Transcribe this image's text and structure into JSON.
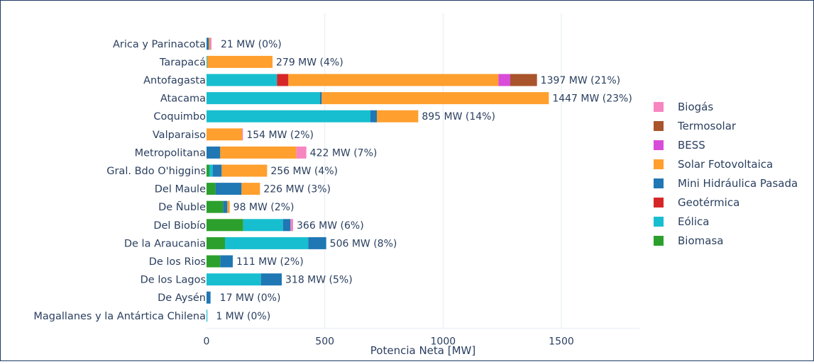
{
  "chart_data": {
    "type": "bar",
    "orientation": "horizontal",
    "stacked": true,
    "xlabel": "Potencia Neta [MW]",
    "ylabel": "",
    "xlim": [
      0,
      1830
    ],
    "xticks": [
      0,
      500,
      1000,
      1500
    ],
    "xtick_labels": [
      "0",
      "500",
      "1000",
      "1500"
    ],
    "grid": true,
    "legend_position": "right",
    "categories": [
      "Arica y Parinacota",
      "Tarapacá",
      "Antofagasta",
      "Atacama",
      "Coquimbo",
      "Valparaiso",
      "Metropolitana",
      "Gral. Bdo O'higgins",
      "Del Maule",
      "De Ñuble",
      "Del Biobío",
      "De la Araucania",
      "De los Rios",
      "De los Lagos",
      "De Aysén",
      "Magallanes y la Antártica Chilena"
    ],
    "series": [
      {
        "name": "Biomasa",
        "color": "#2ca02c",
        "values": [
          0,
          0,
          0,
          0,
          0,
          0,
          0,
          12,
          38,
          70,
          155,
          78,
          58,
          0,
          0,
          0
        ]
      },
      {
        "name": "Eólica",
        "color": "#17becf",
        "values": [
          0,
          3,
          298,
          480,
          693,
          0,
          0,
          14,
          0,
          0,
          168,
          352,
          0,
          230,
          0,
          1
        ]
      },
      {
        "name": "Geotérmica",
        "color": "#d62728",
        "values": [
          0,
          0,
          48,
          0,
          0,
          0,
          0,
          0,
          0,
          0,
          0,
          0,
          0,
          0,
          0,
          0
        ]
      },
      {
        "name": "Mini Hidráulica Pasada",
        "color": "#1f77b4",
        "values": [
          10,
          0,
          0,
          7,
          27,
          0,
          58,
          38,
          110,
          18,
          32,
          76,
          53,
          88,
          17,
          0
        ]
      },
      {
        "name": "Solar Fotovoltaica",
        "color": "#ff9f2e",
        "values": [
          5,
          276,
          888,
          960,
          175,
          150,
          322,
          192,
          78,
          10,
          0,
          0,
          0,
          0,
          0,
          0
        ]
      },
      {
        "name": "BESS",
        "color": "#d94cd9",
        "values": [
          0,
          0,
          50,
          0,
          0,
          0,
          0,
          0,
          0,
          0,
          0,
          0,
          0,
          0,
          0,
          0
        ]
      },
      {
        "name": "Termosolar",
        "color": "#a9542a",
        "values": [
          0,
          0,
          113,
          0,
          0,
          0,
          0,
          0,
          0,
          0,
          0,
          0,
          0,
          0,
          0,
          0
        ]
      },
      {
        "name": "Biogás",
        "color": "#f785c0",
        "values": [
          6,
          0,
          0,
          0,
          0,
          4,
          42,
          0,
          0,
          0,
          11,
          0,
          0,
          0,
          0,
          0
        ]
      }
    ],
    "totals_labels": [
      "21 MW (0%)",
      "279 MW (4%)",
      "1397 MW (21%)",
      "1447 MW (23%)",
      "895 MW (14%)",
      "154 MW (2%)",
      "422 MW (7%)",
      "256 MW (4%)",
      "226 MW (3%)",
      "98 MW (2%)",
      "366 MW (6%)",
      "506 MW (8%)",
      "111 MW (2%)",
      "318 MW (5%)",
      "17 MW (0%)",
      "1 MW (0%)"
    ],
    "totals": [
      21,
      279,
      1397,
      1447,
      895,
      154,
      422,
      256,
      226,
      98,
      366,
      506,
      111,
      318,
      17,
      1
    ],
    "legend": [
      {
        "name": "Biogás",
        "color": "#f785c0"
      },
      {
        "name": "Termosolar",
        "color": "#a9542a"
      },
      {
        "name": "BESS",
        "color": "#d94cd9"
      },
      {
        "name": "Solar Fotovoltaica",
        "color": "#ff9f2e"
      },
      {
        "name": "Mini Hidráulica Pasada",
        "color": "#1f77b4"
      },
      {
        "name": "Geotérmica",
        "color": "#d62728"
      },
      {
        "name": "Eólica",
        "color": "#17becf"
      },
      {
        "name": "Biomasa",
        "color": "#2ca02c"
      }
    ]
  }
}
